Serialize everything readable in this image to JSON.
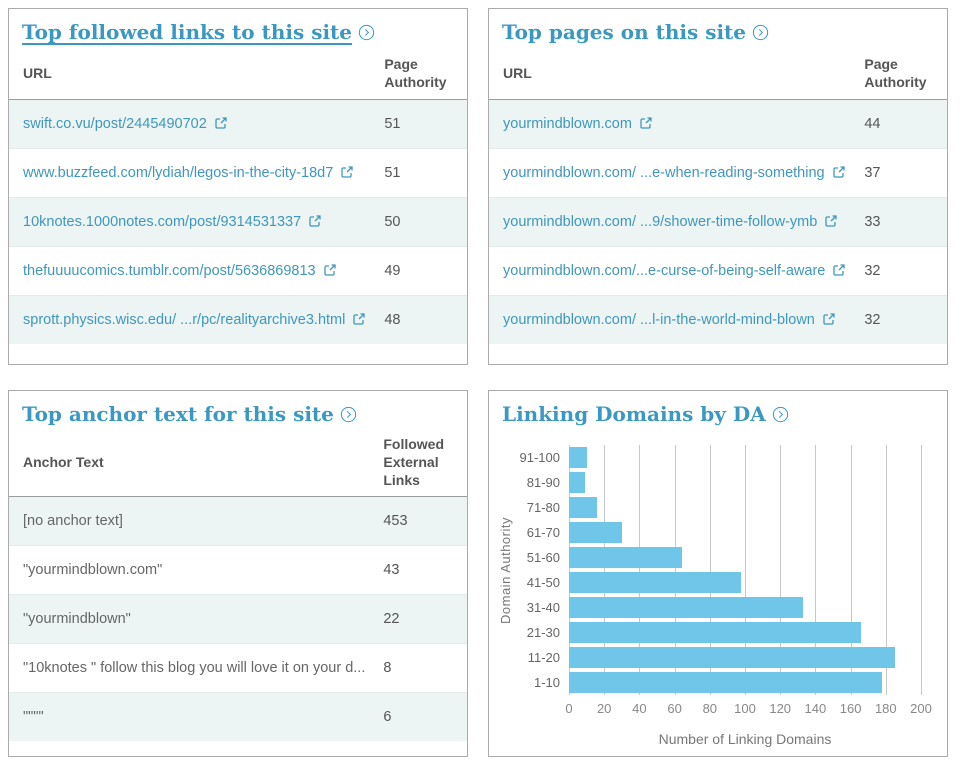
{
  "colors": {
    "accent": "#3b98c0",
    "link": "#4197bb",
    "bar": "#6fc6e9",
    "row_shade": "#ecf4f4",
    "panel_border": "#ababab"
  },
  "icons": {
    "panel_more": "chevron-right-in-circle",
    "external_link": "arrow-out-of-box"
  },
  "panels": {
    "followed_links": {
      "title": "Top followed links to this site",
      "columns": [
        "URL",
        "Page Authority"
      ],
      "rows": [
        {
          "url": "swift.co.vu/post/2445490702",
          "page_authority": "51"
        },
        {
          "url": "www.buzzfeed.com/lydiah/legos-in-the-city-18d7",
          "page_authority": "51"
        },
        {
          "url": "10knotes.1000notes.com/post/9314531337",
          "page_authority": "50"
        },
        {
          "url": "thefuuuucomics.tumblr.com/post/5636869813",
          "page_authority": "49"
        },
        {
          "url": "sprott.physics.wisc.edu/ ...r/pc/realityarchive3.html",
          "page_authority": "48"
        }
      ]
    },
    "top_pages": {
      "title": "Top pages on this site",
      "columns": [
        "URL",
        "Page Authority"
      ],
      "rows": [
        {
          "url": "yourmindblown.com",
          "page_authority": "44"
        },
        {
          "url": "yourmindblown.com/ ...e-when-reading-something",
          "page_authority": "37"
        },
        {
          "url": "yourmindblown.com/ ...9/shower-time-follow-ymb",
          "page_authority": "33"
        },
        {
          "url": "yourmindblown.com/...e-curse-of-being-self-aware",
          "page_authority": "32"
        },
        {
          "url": "yourmindblown.com/ ...l-in-the-world-mind-blown",
          "page_authority": "32"
        }
      ]
    },
    "anchor_text": {
      "title": "Top anchor text for this site",
      "columns": [
        "Anchor Text",
        "Followed External Links"
      ],
      "rows": [
        {
          "text": "[no anchor text]",
          "links": "453"
        },
        {
          "text": "\"yourmindblown.com\"",
          "links": "43"
        },
        {
          "text": "\"yourmindblown\"",
          "links": "22"
        },
        {
          "text": "\"10knotes \" follow this blog you will love it on your d...",
          "links": "8"
        },
        {
          "text": "\"\"\"\"",
          "links": "6"
        }
      ]
    },
    "linking_domains": {
      "title": "Linking Domains by DA"
    }
  },
  "chart_data": {
    "type": "bar",
    "orientation": "horizontal",
    "title": "Linking Domains by DA",
    "categories": [
      "91-100",
      "81-90",
      "71-80",
      "61-70",
      "51-60",
      "41-50",
      "31-40",
      "21-30",
      "11-20",
      "1-10"
    ],
    "values": [
      10,
      9,
      16,
      30,
      64,
      98,
      133,
      166,
      185,
      178
    ],
    "xlabel": "Number of Linking Domains",
    "ylabel": "Domain Authority",
    "xlim": [
      0,
      200
    ],
    "xticks": [
      0,
      20,
      40,
      60,
      80,
      100,
      120,
      140,
      160,
      180,
      200
    ],
    "grid": true,
    "legend": false,
    "bar_color": "#6fc6e9"
  }
}
